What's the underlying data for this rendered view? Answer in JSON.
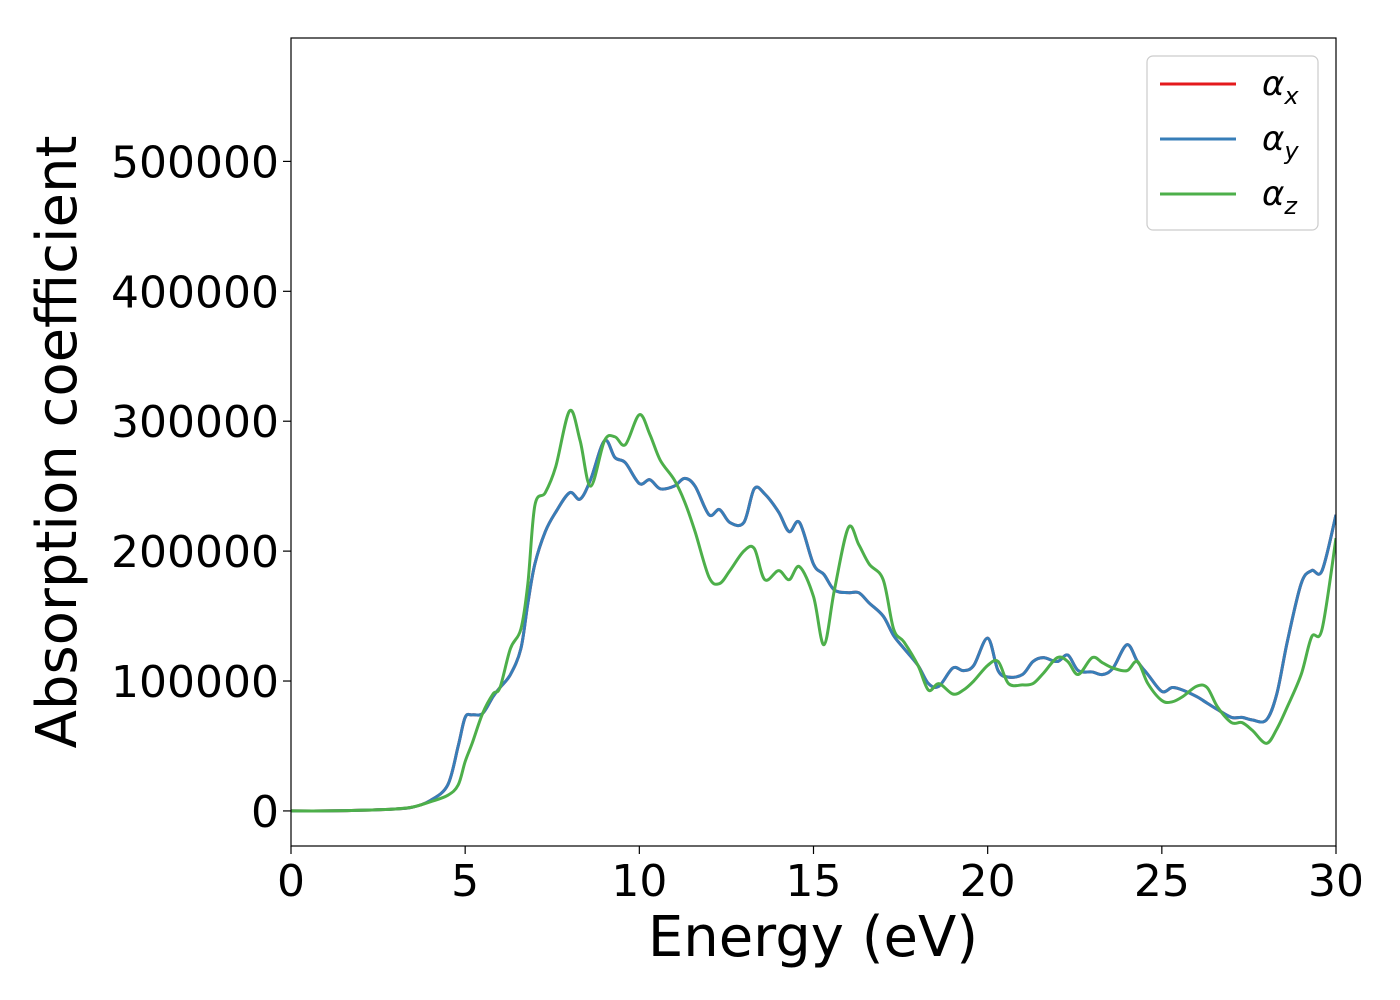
{
  "chart_data": {
    "type": "line",
    "title": "",
    "xlabel": "Energy (eV)",
    "ylabel": "Absorption coefficient",
    "xlim": [
      0,
      30
    ],
    "ylim": [
      -27000,
      595000
    ],
    "xticks": [
      0,
      5,
      10,
      15,
      20,
      25,
      30
    ],
    "xtick_labels": [
      "0",
      "5",
      "10",
      "15",
      "20",
      "25",
      "30"
    ],
    "yticks": [
      0,
      100000,
      200000,
      300000,
      400000,
      500000
    ],
    "ytick_labels": [
      "0",
      "100000",
      "200000",
      "300000",
      "400000",
      "500000"
    ],
    "grid": false,
    "legend_position": "top-right",
    "x": [
      0,
      1,
      2,
      3,
      3.5,
      4,
      4.5,
      4.8,
      5.0,
      5.2,
      5.5,
      5.8,
      6.0,
      6.3,
      6.6,
      6.8,
      7.0,
      7.3,
      7.6,
      8.0,
      8.3,
      8.6,
      9.0,
      9.3,
      9.6,
      10.0,
      10.3,
      10.6,
      11.0,
      11.3,
      11.6,
      12.0,
      12.3,
      12.6,
      13.0,
      13.3,
      13.6,
      14.0,
      14.3,
      14.6,
      15.0,
      15.3,
      15.6,
      16.0,
      16.3,
      16.6,
      17.0,
      17.3,
      17.6,
      18.0,
      18.3,
      18.6,
      19.0,
      19.3,
      19.6,
      20.0,
      20.3,
      20.6,
      21.0,
      21.3,
      21.6,
      22.0,
      22.3,
      22.6,
      23.0,
      23.3,
      23.6,
      24.0,
      24.3,
      24.6,
      25.0,
      25.3,
      25.6,
      26.0,
      26.3,
      26.6,
      27.0,
      27.3,
      27.6,
      28.0,
      28.3,
      28.6,
      29.0,
      29.3,
      29.6,
      30.0
    ],
    "series": [
      {
        "name": "αx",
        "color": "#e41a1c",
        "values": [
          0,
          0,
          500,
          1500,
          3000,
          8000,
          20000,
          50000,
          72000,
          74000,
          75000,
          88000,
          95000,
          105000,
          125000,
          160000,
          190000,
          215000,
          230000,
          245000,
          240000,
          255000,
          285000,
          272000,
          268000,
          252000,
          255000,
          248000,
          250000,
          256000,
          250000,
          228000,
          232000,
          222000,
          222000,
          248000,
          244000,
          230000,
          215000,
          222000,
          190000,
          182000,
          170000,
          168000,
          168000,
          160000,
          150000,
          135000,
          125000,
          112000,
          98000,
          96000,
          110000,
          108000,
          112000,
          133000,
          108000,
          103000,
          105000,
          115000,
          118000,
          115000,
          120000,
          108000,
          107000,
          105000,
          110000,
          128000,
          115000,
          105000,
          92000,
          95000,
          93000,
          88000,
          83000,
          78000,
          72000,
          72000,
          70000,
          70000,
          90000,
          130000,
          175000,
          185000,
          185000,
          228000
        ]
      },
      {
        "name": "αy",
        "color": "#377eb8",
        "values": [
          0,
          0,
          500,
          1500,
          3000,
          8000,
          20000,
          50000,
          72000,
          74000,
          75000,
          88000,
          95000,
          105000,
          125000,
          160000,
          190000,
          215000,
          230000,
          245000,
          240000,
          255000,
          285000,
          272000,
          268000,
          252000,
          255000,
          248000,
          250000,
          256000,
          250000,
          228000,
          232000,
          222000,
          222000,
          248000,
          244000,
          230000,
          215000,
          222000,
          190000,
          182000,
          170000,
          168000,
          168000,
          160000,
          150000,
          135000,
          125000,
          112000,
          98000,
          96000,
          110000,
          108000,
          112000,
          133000,
          108000,
          103000,
          105000,
          115000,
          118000,
          115000,
          120000,
          108000,
          107000,
          105000,
          110000,
          128000,
          115000,
          105000,
          92000,
          95000,
          93000,
          88000,
          83000,
          78000,
          72000,
          72000,
          70000,
          70000,
          90000,
          130000,
          175000,
          185000,
          185000,
          228000
        ]
      },
      {
        "name": "αz",
        "color": "#4daf4a",
        "values": [
          0,
          0,
          500,
          1500,
          3000,
          7000,
          12000,
          20000,
          38000,
          52000,
          75000,
          90000,
          95000,
          125000,
          140000,
          175000,
          235000,
          245000,
          265000,
          308000,
          285000,
          250000,
          285000,
          288000,
          282000,
          305000,
          290000,
          270000,
          255000,
          238000,
          215000,
          180000,
          175000,
          185000,
          200000,
          202000,
          178000,
          185000,
          178000,
          188000,
          165000,
          128000,
          170000,
          218000,
          205000,
          190000,
          178000,
          140000,
          130000,
          112000,
          93000,
          98000,
          90000,
          93000,
          100000,
          112000,
          115000,
          98000,
          97000,
          98000,
          106000,
          118000,
          115000,
          105000,
          118000,
          114000,
          110000,
          108000,
          115000,
          98000,
          85000,
          84000,
          88000,
          96000,
          95000,
          80000,
          68000,
          68000,
          62000,
          52000,
          63000,
          80000,
          105000,
          134000,
          140000,
          210000
        ]
      }
    ]
  },
  "legend": {
    "items": [
      {
        "symbol": "α",
        "sub": "x",
        "color": "#e41a1c"
      },
      {
        "symbol": "α",
        "sub": "y",
        "color": "#377eb8"
      },
      {
        "symbol": "α",
        "sub": "z",
        "color": "#4daf4a"
      }
    ]
  }
}
